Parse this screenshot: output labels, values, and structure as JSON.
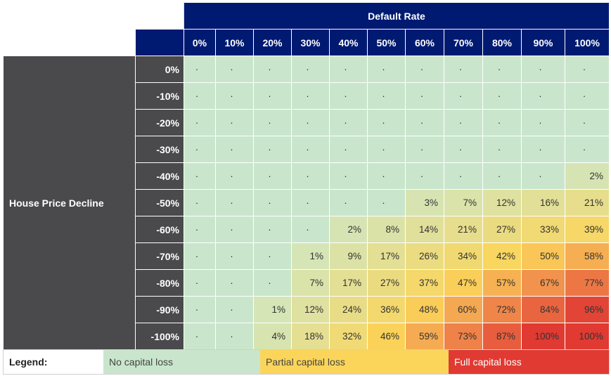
{
  "chart_data": {
    "type": "heatmap",
    "column_group_label": "Default Rate",
    "row_group_label": "House Price Decline",
    "columns": [
      "0%",
      "10%",
      "20%",
      "30%",
      "40%",
      "50%",
      "60%",
      "70%",
      "80%",
      "90%",
      "100%"
    ],
    "rows": [
      "0%",
      "-10%",
      "-20%",
      "-30%",
      "-40%",
      "-50%",
      "-60%",
      "-70%",
      "-80%",
      "-90%",
      "-100%"
    ],
    "values": [
      [
        0,
        0,
        0,
        0,
        0,
        0,
        0,
        0,
        0,
        0,
        0
      ],
      [
        0,
        0,
        0,
        0,
        0,
        0,
        0,
        0,
        0,
        0,
        0
      ],
      [
        0,
        0,
        0,
        0,
        0,
        0,
        0,
        0,
        0,
        0,
        0
      ],
      [
        0,
        0,
        0,
        0,
        0,
        0,
        0,
        0,
        0,
        0,
        0
      ],
      [
        0,
        0,
        0,
        0,
        0,
        0,
        0,
        0,
        0,
        0,
        2
      ],
      [
        0,
        0,
        0,
        0,
        0,
        0,
        3,
        7,
        12,
        16,
        21
      ],
      [
        0,
        0,
        0,
        0,
        2,
        8,
        14,
        21,
        27,
        33,
        39
      ],
      [
        0,
        0,
        0,
        1,
        9,
        17,
        26,
        34,
        42,
        50,
        58
      ],
      [
        0,
        0,
        0,
        7,
        17,
        27,
        37,
        47,
        57,
        67,
        77
      ],
      [
        0,
        0,
        1,
        12,
        24,
        36,
        48,
        60,
        72,
        84,
        96
      ],
      [
        0,
        0,
        4,
        18,
        32,
        46,
        59,
        73,
        87,
        100,
        100
      ]
    ],
    "zero_display": "·",
    "value_suffix": "%",
    "colors": {
      "header_bg": "#001a72",
      "row_label_bg": "#4a4a4d",
      "no_loss": "#c9e6cc",
      "partial_low": "#d4e5b8",
      "partial_mid": "#fbd55a",
      "partial_high": "#f08a4b",
      "full_loss": "#e03a32"
    }
  },
  "legend": {
    "title": "Legend:",
    "items": [
      {
        "label": "No capital loss",
        "color": "#c9e6cc"
      },
      {
        "label": "Partial capital loss",
        "color": "#fbd55a"
      },
      {
        "label": "Full capital loss",
        "color": "#e03a32"
      }
    ]
  }
}
